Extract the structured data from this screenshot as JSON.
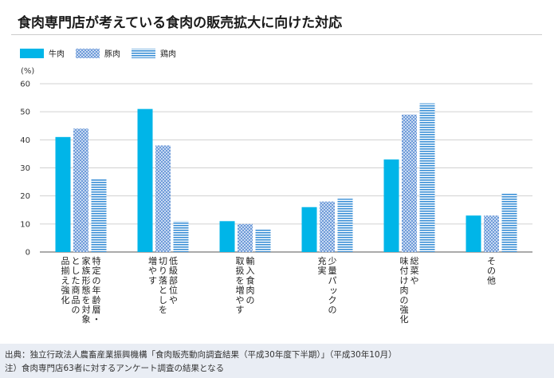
{
  "title": "食肉専門店が考えている食肉の販売拡大に向けた対応",
  "footer": {
    "line1": "出典：独立行政法人農畜産業振興機構「食肉販売動向調査結果（平成30年度下半期）」（平成30年10月）",
    "line2": "注）食肉専門店63者に対するアンケート調査の結果となる"
  },
  "chart_data": {
    "type": "bar",
    "ylabel": "(%)",
    "ylim": [
      0,
      60
    ],
    "yticks": [
      0,
      10,
      20,
      30,
      40,
      50,
      60
    ],
    "grid": true,
    "legend_position": "top-left",
    "categories": [
      "特定の年齢層・家族形態を対象とした商品の品揃え強化",
      "低級部位や切り落としを増やす",
      "輸入食肉の取扱を増やす",
      "少量パックの充実",
      "総菜や味付け肉の強化",
      "その他"
    ],
    "category_label_columns": [
      [
        "品揃え強化",
        "とした商品の",
        "家族形態を対象",
        "特定の年齢層・"
      ],
      [
        "増やす",
        "切り落としを",
        "低級部位や"
      ],
      [
        "取扱を増やす",
        "輸入食肉の"
      ],
      [
        "充実",
        "少量パックの"
      ],
      [
        "味付け肉の強化",
        "総菜や"
      ],
      [
        "その他"
      ]
    ],
    "series": [
      {
        "name": "牛肉",
        "values": [
          41,
          51,
          11,
          16,
          33,
          13
        ],
        "color": "#00b5e8",
        "pattern": "solid"
      },
      {
        "name": "豚肉",
        "values": [
          44,
          38,
          10,
          18,
          49,
          13
        ],
        "color": "#8fb4e3",
        "pattern": "checker"
      },
      {
        "name": "鶏肉",
        "values": [
          26,
          11,
          8,
          19,
          53,
          21
        ],
        "color": "#3a8fd6",
        "pattern": "horizontal-stripes"
      }
    ]
  }
}
